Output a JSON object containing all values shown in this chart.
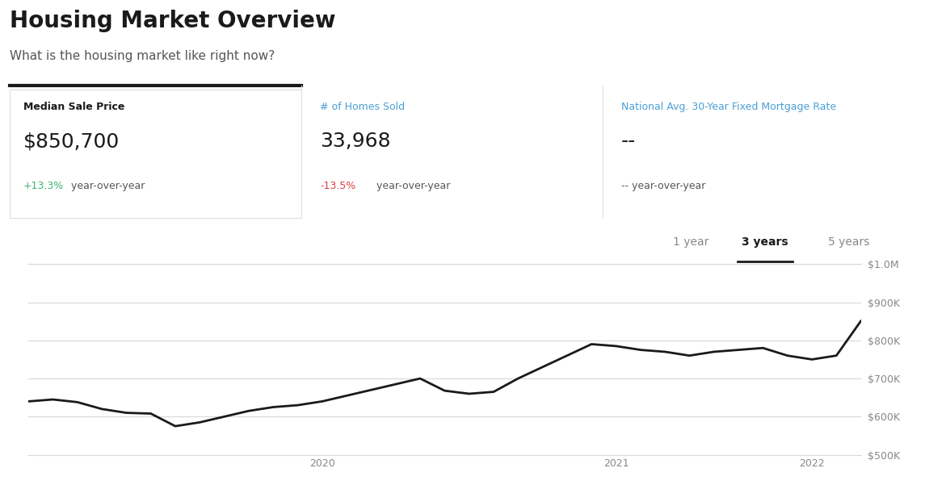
{
  "title": "Housing Market Overview",
  "subtitle": "What is the housing market like right now?",
  "stat1_label": "Median Sale Price",
  "stat1_value": "$850,700",
  "stat1_change": "+13.3%",
  "stat1_change_text": " year-over-year",
  "stat1_change_color": "#3cb371",
  "stat2_label": "# of Homes Sold",
  "stat2_label_color": "#4a9fd4",
  "stat2_value": "33,968",
  "stat2_change": "-13.5%",
  "stat2_change_text": " year-over-year",
  "stat2_change_color": "#e04040",
  "stat3_label": "National Avg. 30-Year Fixed Mortgage Rate",
  "stat3_label_color": "#4a9fd4",
  "stat3_value": "--",
  "stat3_change": "-- year-over-year",
  "period_options": [
    "1 year",
    "3 years",
    "5 years"
  ],
  "period_selected": "3 years",
  "ylim": [
    500000,
    1000000
  ],
  "yticks": [
    500000,
    600000,
    700000,
    800000,
    900000,
    1000000
  ],
  "ytick_labels": [
    "$500K",
    "$600K",
    "$700K",
    "$800K",
    "$900K",
    "$1.0M"
  ],
  "xtick_labels": [
    "2020",
    "2021",
    "2022"
  ],
  "line_color": "#1a1a1a",
  "line_width": 2.0,
  "grid_color": "#d8d8d8",
  "background_color": "#ffffff",
  "prices": [
    640000,
    645000,
    638000,
    620000,
    610000,
    608000,
    575000,
    585000,
    600000,
    615000,
    625000,
    630000,
    640000,
    655000,
    670000,
    685000,
    700000,
    668000,
    660000,
    665000,
    700000,
    730000,
    760000,
    790000,
    785000,
    775000,
    770000,
    760000,
    770000,
    775000,
    780000,
    760000,
    750000,
    760000,
    850700
  ]
}
